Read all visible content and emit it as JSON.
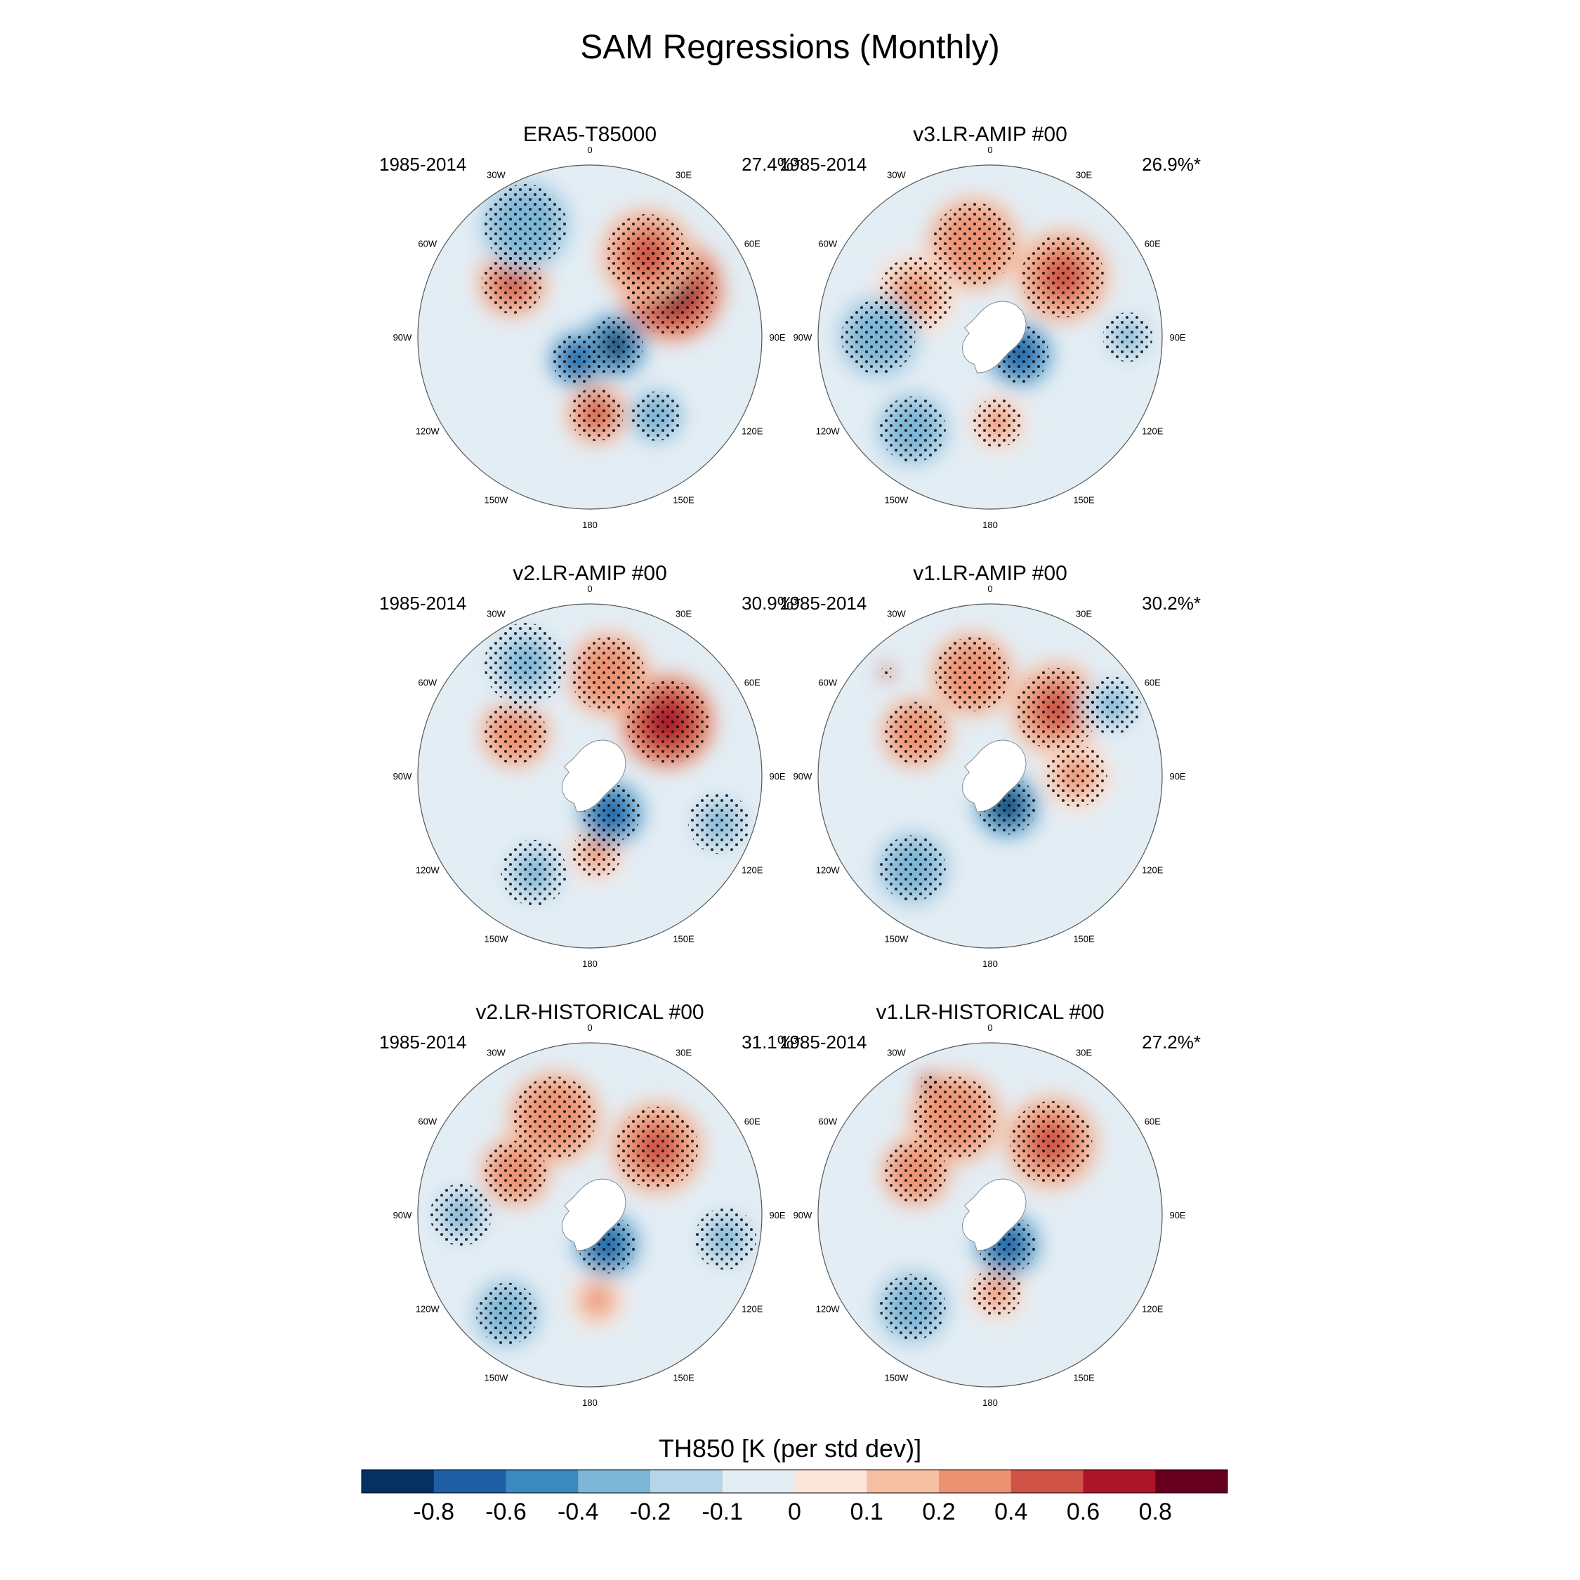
{
  "title": "SAM Regressions (Monthly)",
  "colors": {
    "levels": [
      "#053061",
      "#1d5ea5",
      "#3b89bf",
      "#7db6d6",
      "#b6d5e8",
      "#e3edf4",
      "#fbe6dc",
      "#f6bfa3",
      "#eb9273",
      "#cf5247",
      "#ab1429",
      "#67001f"
    ],
    "coast": "#8a8a8a",
    "stipple": "#000000",
    "antarctica_mask": "#ffffff"
  },
  "panels": [
    {
      "title": "ERA5-T85000",
      "period": "1985-2014",
      "variance": "27.4%*",
      "anomalies": [
        {
          "lon": 60,
          "colat": 0.55,
          "v": 0.85,
          "r": 0.22
        },
        {
          "lon": 35,
          "colat": 0.58,
          "v": 0.45,
          "r": 0.2
        },
        {
          "lon": -55,
          "colat": 0.55,
          "v": 0.45,
          "r": 0.15
        },
        {
          "lon": 175,
          "colat": 0.45,
          "v": 0.45,
          "r": 0.13
        },
        {
          "lon": 110,
          "colat": 0.15,
          "v": -0.85,
          "r": 0.14
        },
        {
          "lon": -150,
          "colat": 0.15,
          "v": -0.75,
          "r": 0.12
        },
        {
          "lon": 140,
          "colat": 0.6,
          "v": -0.4,
          "r": 0.12
        },
        {
          "lon": -30,
          "colat": 0.75,
          "v": -0.35,
          "r": 0.2
        }
      ]
    },
    {
      "title": "v3.LR-AMIP  #00",
      "period": "1985-2014",
      "variance": "26.9%*",
      "anomalies": [
        {
          "lon": 50,
          "colat": 0.55,
          "v": 0.5,
          "r": 0.2
        },
        {
          "lon": -10,
          "colat": 0.55,
          "v": 0.35,
          "r": 0.2
        },
        {
          "lon": -60,
          "colat": 0.5,
          "v": 0.3,
          "r": 0.18
        },
        {
          "lon": 175,
          "colat": 0.5,
          "v": 0.3,
          "r": 0.12
        },
        {
          "lon": 120,
          "colat": 0.2,
          "v": -0.75,
          "r": 0.14
        },
        {
          "lon": -90,
          "colat": 0.65,
          "v": -0.35,
          "r": 0.18
        },
        {
          "lon": -140,
          "colat": 0.7,
          "v": -0.35,
          "r": 0.16
        },
        {
          "lon": 90,
          "colat": 0.8,
          "v": -0.3,
          "r": 0.12
        }
      ]
    },
    {
      "title": "v2.LR-AMIP  #00",
      "period": "1985-2014",
      "variance": "30.9%*",
      "anomalies": [
        {
          "lon": 55,
          "colat": 0.55,
          "v": 0.7,
          "r": 0.2
        },
        {
          "lon": 10,
          "colat": 0.6,
          "v": 0.35,
          "r": 0.18
        },
        {
          "lon": -60,
          "colat": 0.5,
          "v": 0.35,
          "r": 0.15
        },
        {
          "lon": 175,
          "colat": 0.45,
          "v": 0.3,
          "r": 0.12
        },
        {
          "lon": 150,
          "colat": 0.25,
          "v": -0.75,
          "r": 0.14
        },
        {
          "lon": -30,
          "colat": 0.75,
          "v": -0.3,
          "r": 0.2
        },
        {
          "lon": 110,
          "colat": 0.8,
          "v": -0.3,
          "r": 0.15
        },
        {
          "lon": -150,
          "colat": 0.65,
          "v": -0.3,
          "r": 0.16
        }
      ]
    },
    {
      "title": "v1.LR-AMIP  #00",
      "period": "1985-2014",
      "variance": "30.2%*",
      "anomalies": [
        {
          "lon": 45,
          "colat": 0.55,
          "v": 0.55,
          "r": 0.2
        },
        {
          "lon": -10,
          "colat": 0.6,
          "v": 0.35,
          "r": 0.18
        },
        {
          "lon": -60,
          "colat": 0.5,
          "v": 0.35,
          "r": 0.15
        },
        {
          "lon": 90,
          "colat": 0.5,
          "v": 0.3,
          "r": 0.15
        },
        {
          "lon": 150,
          "colat": 0.2,
          "v": -0.85,
          "r": 0.14
        },
        {
          "lon": -140,
          "colat": 0.7,
          "v": -0.4,
          "r": 0.16
        },
        {
          "lon": 60,
          "colat": 0.82,
          "v": -0.3,
          "r": 0.14
        },
        {
          "lon": -45,
          "colat": 0.85,
          "v": 0.85,
          "r": 0.03
        }
      ]
    },
    {
      "title": "v2.LR-HISTORICAL  #00",
      "period": "1985-2014",
      "variance": "31.1%*",
      "anomalies": [
        {
          "lon": 45,
          "colat": 0.55,
          "v": 0.45,
          "r": 0.2
        },
        {
          "lon": -20,
          "colat": 0.6,
          "v": 0.35,
          "r": 0.2
        },
        {
          "lon": -60,
          "colat": 0.5,
          "v": 0.35,
          "r": 0.15
        },
        {
          "lon": 175,
          "colat": 0.5,
          "v": 0.25,
          "r": 0.12
        },
        {
          "lon": 150,
          "colat": 0.2,
          "v": -0.75,
          "r": 0.14
        },
        {
          "lon": -140,
          "colat": 0.75,
          "v": -0.35,
          "r": 0.15
        },
        {
          "lon": 100,
          "colat": 0.8,
          "v": -0.3,
          "r": 0.15
        },
        {
          "lon": -90,
          "colat": 0.75,
          "v": -0.3,
          "r": 0.15
        }
      ]
    },
    {
      "title": "v1.LR-HISTORICAL  #00",
      "period": "1985-2014",
      "variance": "27.2%*",
      "anomalies": [
        {
          "lon": 40,
          "colat": 0.55,
          "v": 0.45,
          "r": 0.2
        },
        {
          "lon": -20,
          "colat": 0.6,
          "v": 0.35,
          "r": 0.2
        },
        {
          "lon": -60,
          "colat": 0.5,
          "v": 0.35,
          "r": 0.15
        },
        {
          "lon": 175,
          "colat": 0.45,
          "v": 0.3,
          "r": 0.12
        },
        {
          "lon": 150,
          "colat": 0.2,
          "v": -0.8,
          "r": 0.14
        },
        {
          "lon": -140,
          "colat": 0.7,
          "v": -0.35,
          "r": 0.16
        },
        {
          "lon": -25,
          "colat": 0.85,
          "v": 0.85,
          "r": 0.04
        }
      ]
    }
  ],
  "lon_labels": [
    {
      "lon": 0,
      "text": "0"
    },
    {
      "lon": 30,
      "text": "30E"
    },
    {
      "lon": 60,
      "text": "60E"
    },
    {
      "lon": 90,
      "text": "90E"
    },
    {
      "lon": 120,
      "text": "120E"
    },
    {
      "lon": 150,
      "text": "150E"
    },
    {
      "lon": 180,
      "text": "180"
    },
    {
      "lon": -150,
      "text": "150W"
    },
    {
      "lon": -120,
      "text": "120W"
    },
    {
      "lon": -90,
      "text": "90W"
    },
    {
      "lon": -60,
      "text": "60W"
    },
    {
      "lon": -30,
      "text": "30W"
    }
  ],
  "colorbar": {
    "label": "TH850 [K (per std dev)]",
    "ticks": [
      "-0.8",
      "-0.6",
      "-0.4",
      "-0.2",
      "-0.1",
      "0",
      "0.1",
      "0.2",
      "0.4",
      "0.6",
      "0.8"
    ],
    "boundaries": [
      -0.8,
      -0.6,
      -0.4,
      -0.2,
      -0.1,
      0,
      0.1,
      0.2,
      0.4,
      0.6,
      0.8
    ]
  }
}
